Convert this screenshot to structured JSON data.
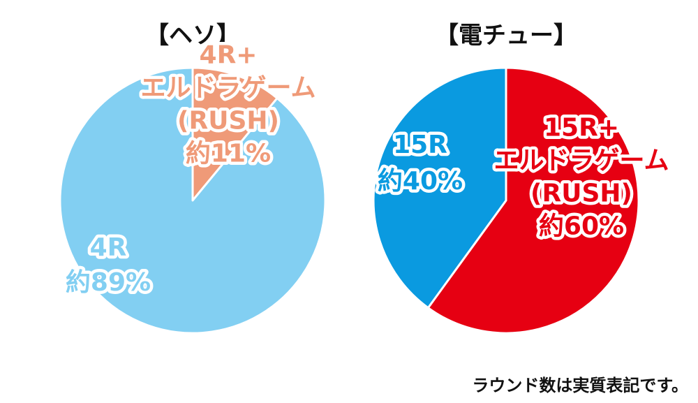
{
  "chart_data": [
    {
      "type": "pie",
      "title": "【ヘソ】",
      "slices": [
        {
          "lines": [
            "4R+",
            "エルドラゲーム",
            "(RUSH)",
            "約11%"
          ],
          "value": 11,
          "color": "#ef9a78"
        },
        {
          "lines": [
            "4R",
            "約89%"
          ],
          "value": 89,
          "color": "#82cff2"
        }
      ]
    },
    {
      "type": "pie",
      "title": "【電チュー】",
      "slices": [
        {
          "lines": [
            "15R+",
            "エルドラゲーム",
            "(RUSH)",
            "約60%"
          ],
          "value": 60,
          "color": "#e60012"
        },
        {
          "lines": [
            "15R",
            "約40%"
          ],
          "value": 40,
          "color": "#0a9ae0"
        }
      ]
    }
  ],
  "footnote": "ラウンド数は実質表記です。"
}
